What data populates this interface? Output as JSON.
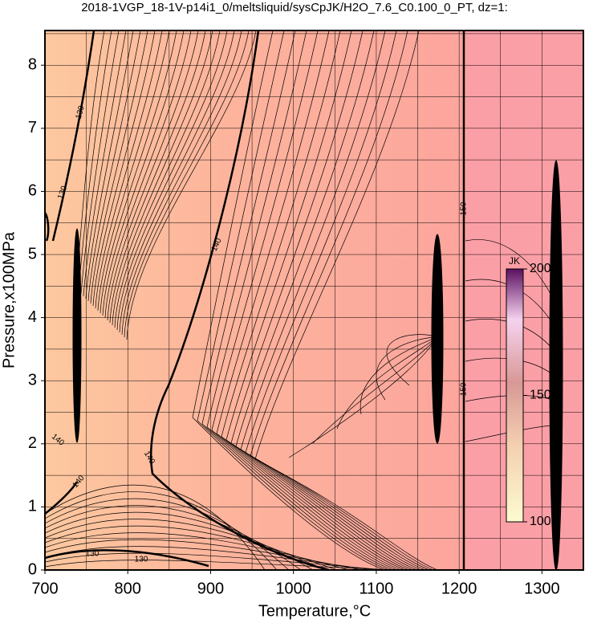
{
  "chart_data": {
    "type": "contour",
    "title": "2018-1VGP_18-1V-p14i1_0/meltsliquid/sysCpJK/H2O_7.6_C0.100_0_PT, dz=1:",
    "x_label": "Temperature,°C",
    "y_label": "Pressure,x100MPa",
    "xlim": [
      700,
      1350
    ],
    "ylim": [
      0,
      8.55
    ],
    "xticks": [
      700,
      800,
      900,
      1000,
      1100,
      1200,
      1300
    ],
    "yticks": [
      0,
      1,
      2,
      3,
      4,
      5,
      6,
      7,
      8
    ],
    "grid": true,
    "grid_step": {
      "x": 50,
      "y": 0.5
    },
    "colorbar": {
      "label": "JK",
      "lim": [
        100,
        200
      ],
      "ticks": [
        100,
        150,
        200
      ]
    },
    "contour_labels": [
      "130",
      "130",
      "140",
      "140",
      "140",
      "140",
      "150",
      "150",
      "130",
      "130"
    ]
  }
}
